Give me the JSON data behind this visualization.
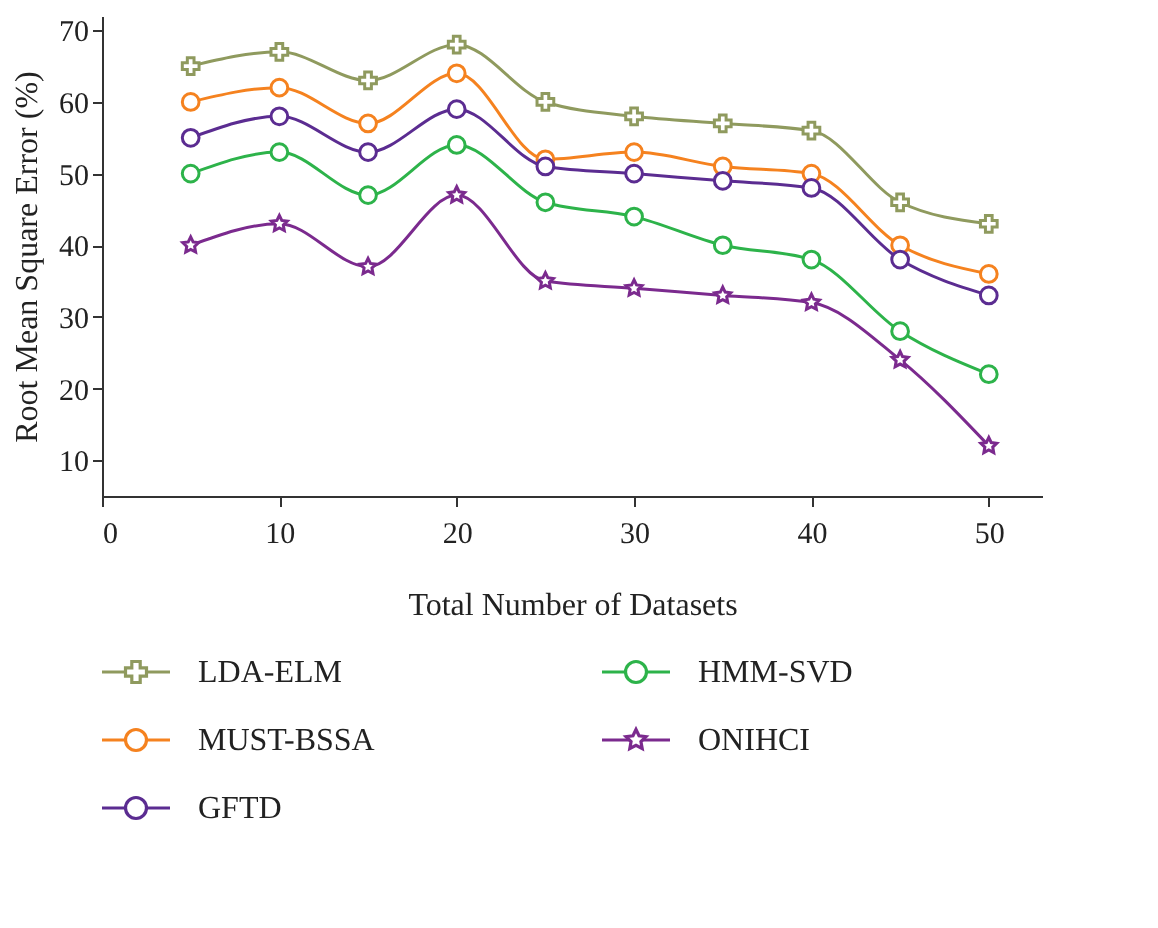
{
  "chart_data": {
    "type": "line",
    "xlabel": "Total Number of Datasets",
    "ylabel": "Root Mean Square Error (%)",
    "x": [
      5,
      10,
      15,
      20,
      25,
      30,
      35,
      40,
      45,
      50
    ],
    "xlim": [
      0,
      53
    ],
    "xticks": [
      0,
      10,
      20,
      30,
      40,
      50
    ],
    "ylim": [
      5,
      72
    ],
    "yticks": [
      10,
      20,
      30,
      40,
      50,
      60,
      70
    ],
    "grid": false,
    "legend": "bottom",
    "line_style": "solid",
    "series": [
      {
        "name": "LDA-ELM",
        "color": "#8f9a5e",
        "marker": "cross",
        "values": [
          65,
          67,
          63,
          68,
          60,
          58,
          57,
          56,
          46,
          43
        ]
      },
      {
        "name": "MUST-BSSA",
        "color": "#f5821f",
        "marker": "circle",
        "values": [
          60,
          62,
          57,
          64,
          52,
          53,
          51,
          50,
          40,
          36
        ]
      },
      {
        "name": "GFTD",
        "color": "#5b2c91",
        "marker": "circle",
        "values": [
          55,
          58,
          53,
          59,
          51,
          50,
          49,
          48,
          38,
          33
        ]
      },
      {
        "name": "HMM-SVD",
        "color": "#2db34a",
        "marker": "circle",
        "values": [
          50,
          53,
          47,
          54,
          46,
          44,
          40,
          38,
          28,
          22
        ]
      },
      {
        "name": "ONIHCI",
        "color": "#7b2a8e",
        "marker": "star",
        "values": [
          40,
          43,
          37,
          47,
          35,
          34,
          33,
          32,
          24,
          12
        ]
      }
    ]
  }
}
